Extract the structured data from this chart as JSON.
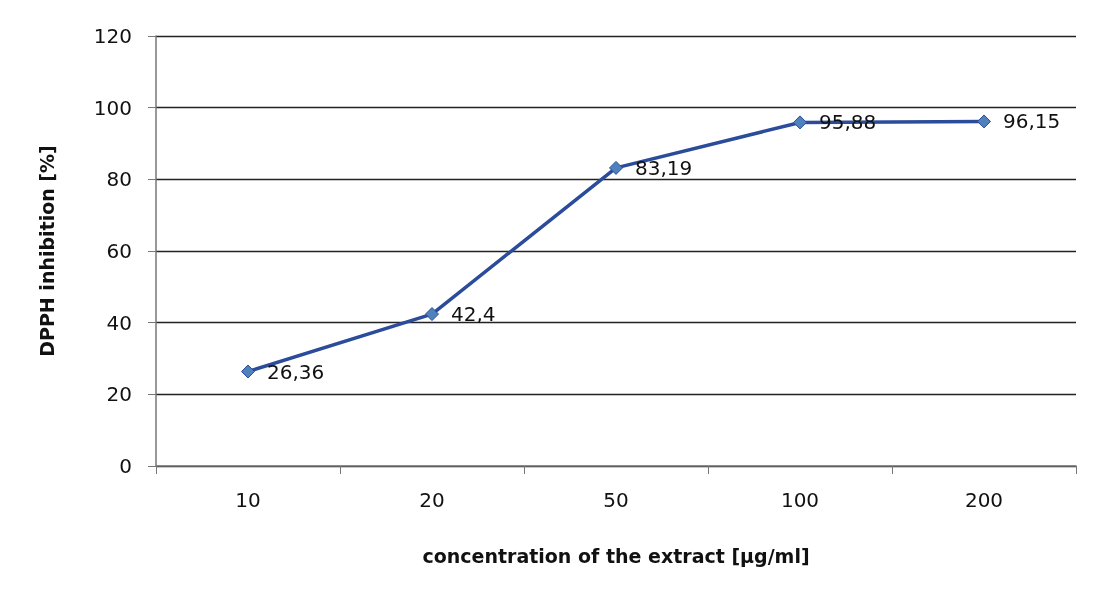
{
  "chart_data": {
    "type": "line",
    "xlabel": "concentration of the extract [µg/ml]",
    "ylabel": "DPPH inhibition [%]",
    "categories": [
      "10",
      "20",
      "50",
      "100",
      "200"
    ],
    "values": [
      26.36,
      42.4,
      83.19,
      95.88,
      96.15
    ],
    "value_labels": [
      "26,36",
      "42,4",
      "83,19",
      "95,88",
      "96,15"
    ],
    "color": "#2b4c9a",
    "marker": "diamond",
    "line_style": "solid",
    "ylim": [
      0,
      120
    ],
    "yticks": [
      0,
      20,
      40,
      60,
      80,
      100,
      120
    ],
    "grid": "y"
  }
}
